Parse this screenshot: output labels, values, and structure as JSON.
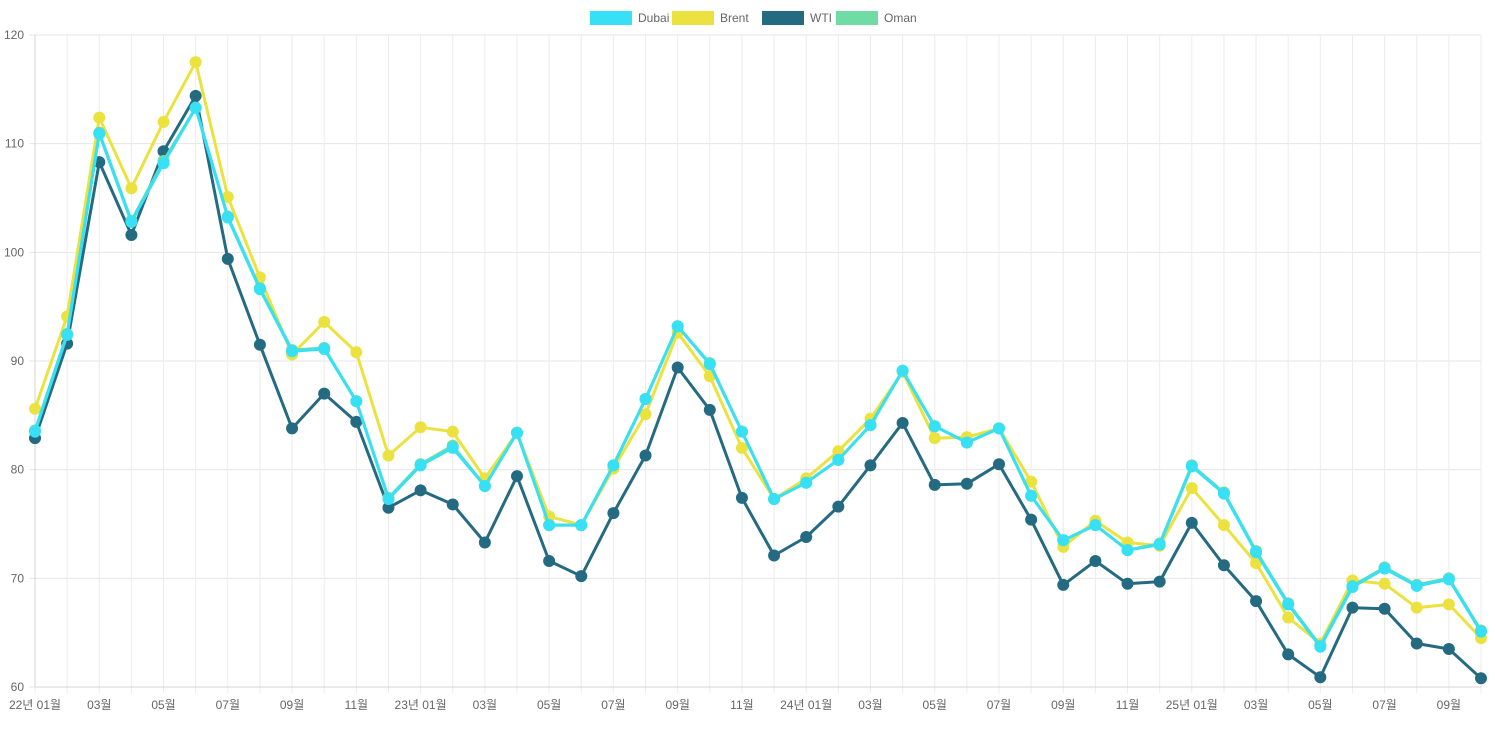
{
  "chart_data": {
    "type": "line",
    "title": "",
    "xlabel": "",
    "ylabel": "",
    "ylim": [
      60,
      120
    ],
    "yticks": [
      "60",
      "70",
      "80",
      "90",
      "100",
      "110",
      "120"
    ],
    "grid": true,
    "legend_position": "top-center",
    "x": [
      "22-01",
      "22-02",
      "22-03",
      "22-04",
      "22-05",
      "22-06",
      "22-07",
      "22-08",
      "22-09",
      "22-10",
      "22-11",
      "22-12",
      "23-01",
      "23-02",
      "23-03",
      "23-04",
      "23-05",
      "23-06",
      "23-07",
      "23-08",
      "23-09",
      "23-10",
      "23-11",
      "23-12",
      "24-01",
      "24-02",
      "24-03",
      "24-04",
      "24-05",
      "24-06",
      "24-07",
      "24-08",
      "24-09",
      "24-10",
      "24-11",
      "24-12",
      "25-01",
      "25-02",
      "25-03",
      "25-04",
      "25-05",
      "25-06",
      "25-07",
      "25-08",
      "25-09",
      "25-10"
    ],
    "xtick_labels": [
      {
        "index": 0,
        "label": "22년 01월"
      },
      {
        "index": 2,
        "label": "03월"
      },
      {
        "index": 4,
        "label": "05월"
      },
      {
        "index": 6,
        "label": "07월"
      },
      {
        "index": 8,
        "label": "09월"
      },
      {
        "index": 10,
        "label": "11월"
      },
      {
        "index": 12,
        "label": "23년 01월"
      },
      {
        "index": 14,
        "label": "03월"
      },
      {
        "index": 16,
        "label": "05월"
      },
      {
        "index": 18,
        "label": "07월"
      },
      {
        "index": 20,
        "label": "09월"
      },
      {
        "index": 22,
        "label": "11월"
      },
      {
        "index": 24,
        "label": "24년 01월"
      },
      {
        "index": 26,
        "label": "03월"
      },
      {
        "index": 28,
        "label": "05월"
      },
      {
        "index": 30,
        "label": "07월"
      },
      {
        "index": 32,
        "label": "09월"
      },
      {
        "index": 34,
        "label": "11월"
      },
      {
        "index": 36,
        "label": "25년 01월"
      },
      {
        "index": 38,
        "label": "03월"
      },
      {
        "index": 40,
        "label": "05월"
      },
      {
        "index": 42,
        "label": "07월"
      },
      {
        "index": 44,
        "label": "09월"
      }
    ],
    "series": [
      {
        "name": "Brent",
        "color": "#ece23f",
        "values": [
          85.6,
          94.1,
          112.4,
          105.9,
          112.0,
          117.5,
          105.1,
          97.7,
          90.6,
          93.6,
          90.8,
          81.3,
          83.9,
          83.5,
          79.2,
          83.4,
          75.7,
          74.9,
          80.1,
          85.1,
          92.6,
          88.6,
          82.0,
          77.3,
          79.2,
          81.7,
          84.7,
          89.0,
          82.9,
          83.0,
          83.8,
          78.9,
          72.9,
          75.3,
          73.3,
          73.0,
          78.3,
          74.9,
          71.4,
          66.4,
          64.0,
          69.8,
          69.5,
          67.3,
          67.6,
          64.5
        ]
      },
      {
        "name": "WTI",
        "color": "#246b82",
        "values": [
          82.9,
          91.6,
          108.3,
          101.6,
          109.3,
          114.4,
          99.4,
          91.5,
          83.8,
          87.0,
          84.4,
          76.5,
          78.1,
          76.8,
          73.3,
          79.4,
          71.6,
          70.2,
          76.0,
          81.3,
          89.4,
          85.5,
          77.4,
          72.1,
          73.8,
          76.6,
          80.4,
          84.3,
          78.6,
          78.7,
          80.5,
          75.4,
          69.4,
          71.6,
          69.5,
          69.7,
          75.1,
          71.2,
          67.9,
          63.0,
          60.9,
          67.3,
          67.2,
          64.0,
          63.5,
          60.8
        ]
      },
      {
        "name": "Oman",
        "color": "#6fdca3",
        "values": [
          83.6,
          92.5,
          111.0,
          102.9,
          108.4,
          113.3,
          103.3,
          96.7,
          91.0,
          91.2,
          86.3,
          77.4,
          80.5,
          82.2,
          78.5,
          83.4,
          74.9,
          74.9,
          80.4,
          86.5,
          93.2,
          89.8,
          83.5,
          77.3,
          78.8,
          80.9,
          84.1,
          89.1,
          84.0,
          82.5,
          83.8,
          77.6,
          73.5,
          74.9,
          72.6,
          73.2,
          80.4,
          77.9,
          72.5,
          67.7,
          63.8,
          69.3,
          71.0,
          69.4,
          70.0,
          65.2
        ]
      },
      {
        "name": "Dubai",
        "color": "#38e0f5",
        "values": [
          83.5,
          92.4,
          110.9,
          102.8,
          108.2,
          113.3,
          103.2,
          96.6,
          90.9,
          91.1,
          86.3,
          77.3,
          80.4,
          82.0,
          78.5,
          83.4,
          74.9,
          74.9,
          80.4,
          86.5,
          93.2,
          89.7,
          83.5,
          77.3,
          78.8,
          80.9,
          84.1,
          89.1,
          84.0,
          82.5,
          83.8,
          77.6,
          73.5,
          74.9,
          72.6,
          73.1,
          80.3,
          77.8,
          72.4,
          67.6,
          63.7,
          69.2,
          70.9,
          69.3,
          69.9,
          65.1
        ]
      }
    ],
    "legend": [
      {
        "name": "Dubai",
        "color": "#38e0f5"
      },
      {
        "name": "Brent",
        "color": "#ece23f"
      },
      {
        "name": "WTI",
        "color": "#246b82"
      },
      {
        "name": "Oman",
        "color": "#6fdca3"
      }
    ]
  }
}
